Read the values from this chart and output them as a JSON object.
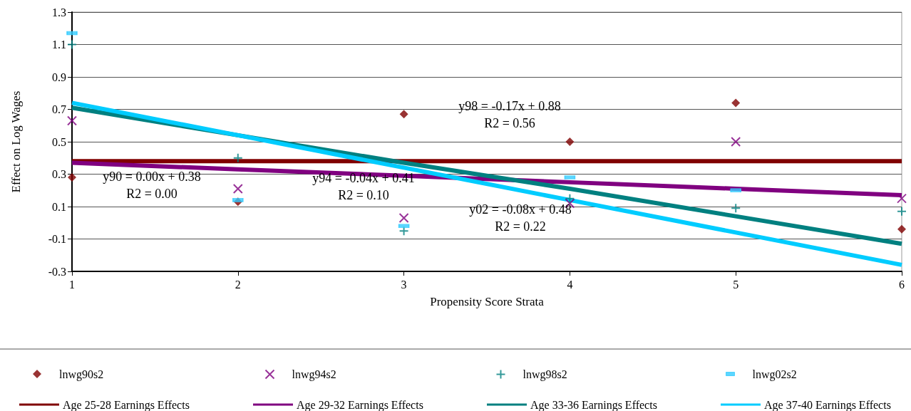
{
  "chart_data": {
    "type": "scatter",
    "xlabel": "Propensity Score Strata",
    "ylabel": "Effect on Log Wages",
    "xlim": [
      1,
      6
    ],
    "xticks": [
      1,
      2,
      3,
      4,
      5,
      6
    ],
    "ylim": [
      -0.3,
      1.3
    ],
    "yticks": [
      -0.3,
      -0.1,
      0.1,
      0.3,
      0.5,
      0.7,
      0.9,
      1.1,
      1.3
    ],
    "grid": "y",
    "legend": "bottom",
    "x": [
      1,
      2,
      3,
      4,
      5,
      6
    ],
    "series": [
      {
        "name": "lnwg90s2",
        "color": "#800000",
        "marker": "diamond",
        "values": [
          0.28,
          0.13,
          0.67,
          0.5,
          0.74,
          -0.04
        ]
      },
      {
        "name": "lnwg94s2",
        "color": "#800080",
        "marker": "cross",
        "values": [
          0.63,
          0.21,
          0.03,
          0.12,
          0.5,
          0.15
        ]
      },
      {
        "name": "lnwg98s2",
        "color": "#008080",
        "marker": "cross",
        "values": [
          1.1,
          0.4,
          -0.05,
          0.15,
          0.09,
          0.07
        ]
      },
      {
        "name": "lnwg02s2",
        "color": "#33ccff",
        "marker": "square",
        "values": [
          1.17,
          0.14,
          -0.02,
          0.28,
          0.2,
          null
        ]
      },
      {
        "name": "Age 25-28 Earnings Effects",
        "type": "line",
        "color": "#800000",
        "marker": "none",
        "values": [
          0.38,
          0.38,
          0.38,
          0.38,
          0.38,
          0.38
        ]
      },
      {
        "name": "Age 29-32 Earnings Effects",
        "type": "line",
        "color": "#800080",
        "marker": "none",
        "values": [
          0.37,
          0.33,
          0.29,
          0.25,
          0.21,
          0.17
        ]
      },
      {
        "name": "Age 33-36 Earnings Effects",
        "type": "line",
        "color": "#008080",
        "marker": "none",
        "values": [
          0.71,
          0.54,
          0.37,
          0.21,
          0.04,
          -0.13
        ]
      },
      {
        "name": "Age 37-40 Earnings Effects",
        "type": "line",
        "color": "#00ccff",
        "marker": "none",
        "values": [
          0.74,
          0.54,
          0.34,
          0.14,
          -0.06,
          -0.26
        ]
      }
    ],
    "annotations": [
      "y90 = 0.00x + 0.38\nR2 = 0.00",
      "y94 = -0.04x + 0.41\nR2 = 0.10",
      "y98 = -0.17x + 0.88\nR2 = 0.56",
      "y02 = -0.08x + 0.48\nR2 = 0.22"
    ]
  }
}
